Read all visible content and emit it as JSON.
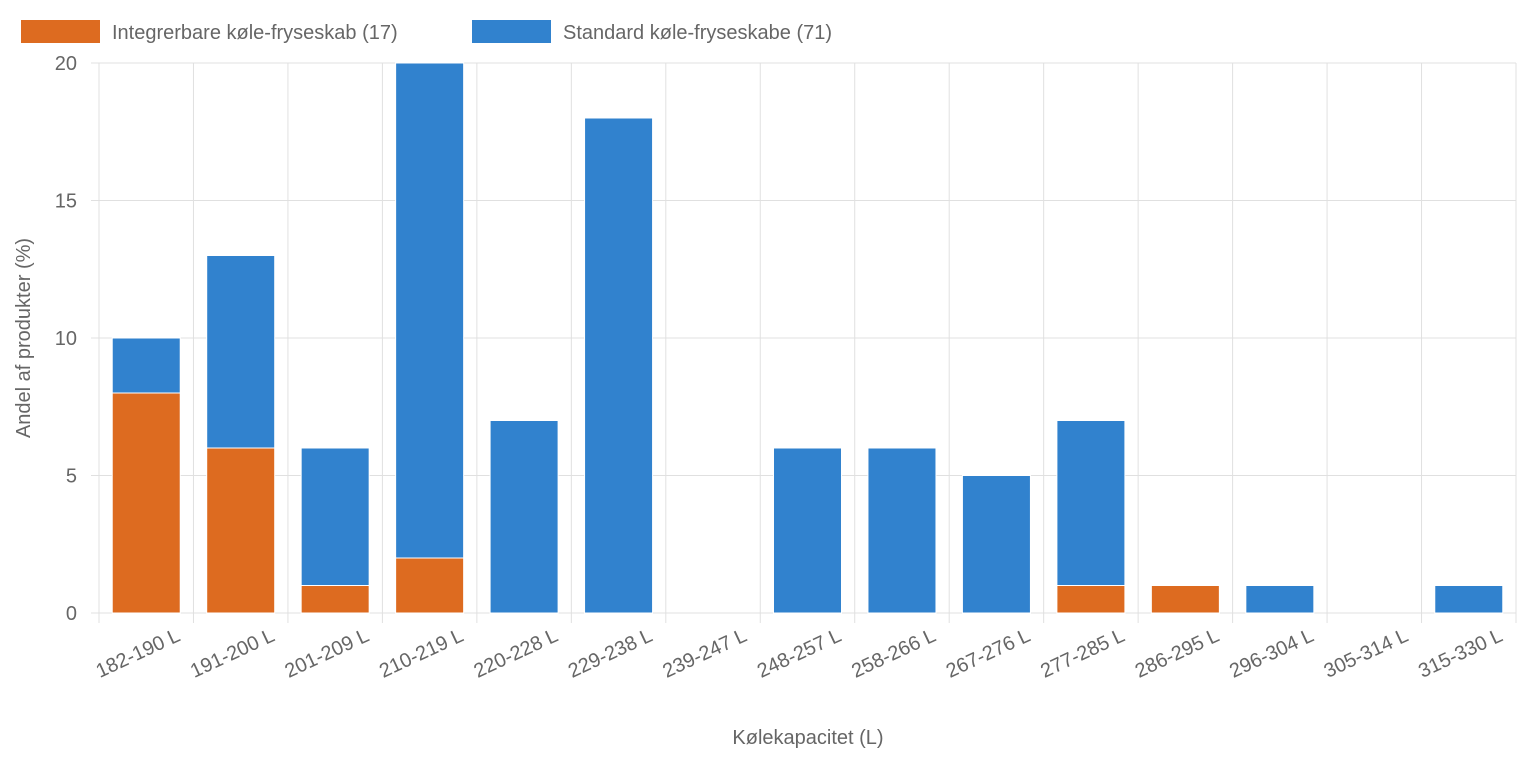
{
  "chart_data": {
    "type": "bar",
    "stacked": true,
    "xlabel": "Kølekapacitet (L)",
    "ylabel": "Andel af produkter (%)",
    "ylim": [
      0,
      20
    ],
    "yticks": [
      0,
      5,
      10,
      15,
      20
    ],
    "grid": true,
    "legend_position": "top-left",
    "categories": [
      "182-190 L",
      "191-200 L",
      "201-209 L",
      "210-219 L",
      "220-228 L",
      "229-238 L",
      "239-247 L",
      "248-257 L",
      "258-266 L",
      "267-276 L",
      "277-285 L",
      "286-295 L",
      "296-304 L",
      "305-314 L",
      "315-330 L"
    ],
    "series": [
      {
        "name": "Integrerbare køle-fryseskab (17)",
        "color": "#dd6b20",
        "values": [
          8,
          6,
          1,
          2,
          0,
          0,
          0,
          0,
          0,
          0,
          1,
          1,
          0,
          0,
          0
        ]
      },
      {
        "name": "Standard køle-fryseskabe (71)",
        "color": "#3182ce",
        "values": [
          2,
          7,
          5,
          18,
          7,
          18,
          0,
          6,
          6,
          5,
          6,
          0,
          1,
          0,
          1
        ]
      }
    ]
  }
}
